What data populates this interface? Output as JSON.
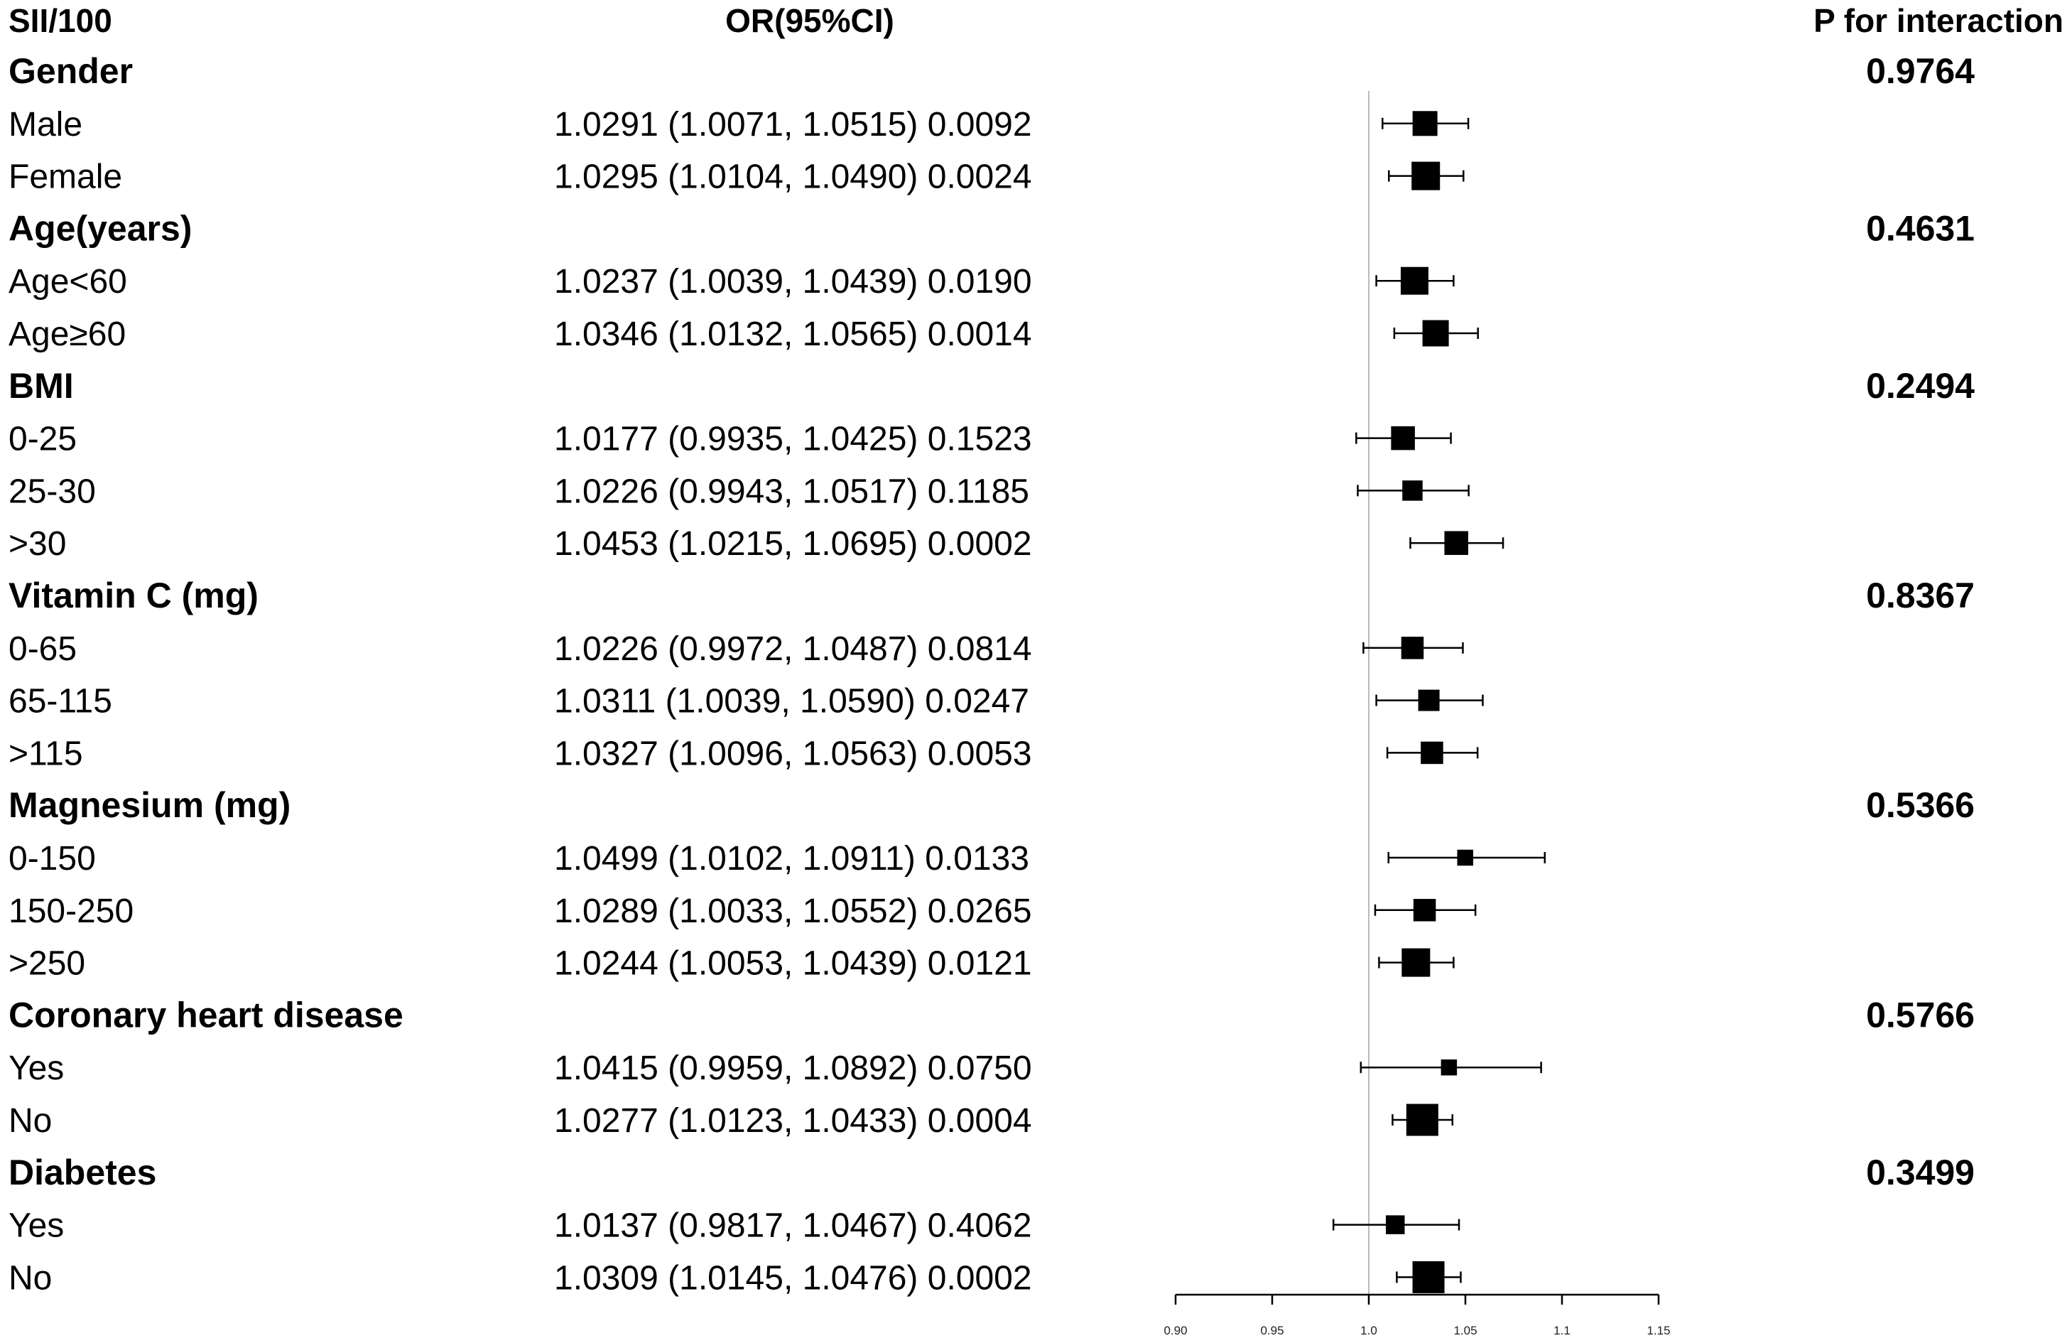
{
  "chart_data": {
    "type": "forest",
    "headers": {
      "label": "SII/100",
      "estimate": "OR(95%CI)",
      "p_interaction": "P for interaction"
    },
    "groups": [
      {
        "name": "Gender",
        "p_interaction": "0.9764",
        "rows": [
          {
            "label": "Male",
            "or": 1.0291,
            "lo": 1.0071,
            "hi": 1.0515,
            "text": "1.0291 (1.0071, 1.0515) 0.0092",
            "weight": 0.7
          },
          {
            "label": "Female",
            "or": 1.0295,
            "lo": 1.0104,
            "hi": 1.049,
            "text": "1.0295 (1.0104, 1.0490) 0.0024",
            "weight": 0.8
          }
        ]
      },
      {
        "name": "Age(years)",
        "p_interaction": "0.4631",
        "rows": [
          {
            "label": "Age<60",
            "or": 1.0237,
            "lo": 1.0039,
            "hi": 1.0439,
            "text": "1.0237 (1.0039, 1.0439) 0.0190",
            "weight": 0.78
          },
          {
            "label": "Age≥60",
            "or": 1.0346,
            "lo": 1.0132,
            "hi": 1.0565,
            "text": "1.0346 (1.0132, 1.0565) 0.0014",
            "weight": 0.74
          }
        ]
      },
      {
        "name": "BMI",
        "p_interaction": "0.2494",
        "rows": [
          {
            "label": "0-25",
            "or": 1.0177,
            "lo": 0.9935,
            "hi": 1.0425,
            "text": "1.0177 (0.9935, 1.0425) 0.1523",
            "weight": 0.67
          },
          {
            "label": "25-30",
            "or": 1.0226,
            "lo": 0.9943,
            "hi": 1.0517,
            "text": "1.0226 (0.9943, 1.0517) 0.1185",
            "weight": 0.57
          },
          {
            "label": ">30",
            "or": 1.0453,
            "lo": 1.0215,
            "hi": 1.0695,
            "text": "1.0453 (1.0215, 1.0695) 0.0002",
            "weight": 0.67
          }
        ]
      },
      {
        "name": "Vitamin C (mg)",
        "p_interaction": "0.8367",
        "rows": [
          {
            "label": "0-65",
            "or": 1.0226,
            "lo": 0.9972,
            "hi": 1.0487,
            "text": "1.0226 (0.9972, 1.0487) 0.0814",
            "weight": 0.63
          },
          {
            "label": "65-115",
            "or": 1.0311,
            "lo": 1.0039,
            "hi": 1.059,
            "text": "1.0311 (1.0039, 1.0590) 0.0247",
            "weight": 0.6
          },
          {
            "label": ">115",
            "or": 1.0327,
            "lo": 1.0096,
            "hi": 1.0563,
            "text": "1.0327 (1.0096, 1.0563) 0.0053",
            "weight": 0.63
          }
        ]
      },
      {
        "name": "Magnesium (mg)",
        "p_interaction": "0.5366",
        "rows": [
          {
            "label": "0-150",
            "or": 1.0499,
            "lo": 1.0102,
            "hi": 1.0911,
            "text": "1.0499 (1.0102, 1.0911) 0.0133",
            "weight": 0.45
          },
          {
            "label": "150-250",
            "or": 1.0289,
            "lo": 1.0033,
            "hi": 1.0552,
            "text": "1.0289 (1.0033, 1.0552) 0.0265",
            "weight": 0.63
          },
          {
            "label": ">250",
            "or": 1.0244,
            "lo": 1.0053,
            "hi": 1.0439,
            "text": "1.0244 (1.0053, 1.0439) 0.0121",
            "weight": 0.8
          }
        ]
      },
      {
        "name": "Coronary heart disease",
        "p_interaction": "0.5766",
        "rows": [
          {
            "label": "Yes",
            "or": 1.0415,
            "lo": 0.9959,
            "hi": 1.0892,
            "text": "1.0415 (0.9959, 1.0892) 0.0750",
            "weight": 0.45
          },
          {
            "label": "No",
            "or": 1.0277,
            "lo": 1.0123,
            "hi": 1.0433,
            "text": "1.0277 (1.0123, 1.0433) 0.0004",
            "weight": 0.9
          }
        ]
      },
      {
        "name": "Diabetes",
        "p_interaction": "0.3499",
        "rows": [
          {
            "label": "Yes",
            "or": 1.0137,
            "lo": 0.9817,
            "hi": 1.0467,
            "text": "1.0137 (0.9817, 1.0467) 0.4062",
            "weight": 0.53
          },
          {
            "label": "No",
            "or": 1.0309,
            "lo": 1.0145,
            "hi": 1.0476,
            "text": "1.0309 (1.0145, 1.0476) 0.0002",
            "weight": 0.9
          }
        ]
      }
    ],
    "x_axis": {
      "range": [
        0.9,
        1.15
      ],
      "ticks": [
        0.9,
        0.95,
        1.0,
        1.05,
        1.1,
        1.15
      ],
      "tick_labels": [
        "0.90",
        "0.95",
        "1.0",
        "1.05",
        "1.1",
        "1.15"
      ],
      "reference_line": 1.0
    },
    "colors": {
      "marker": "#000000",
      "reference_line": "#bbbbbb",
      "text": "#000000"
    }
  }
}
